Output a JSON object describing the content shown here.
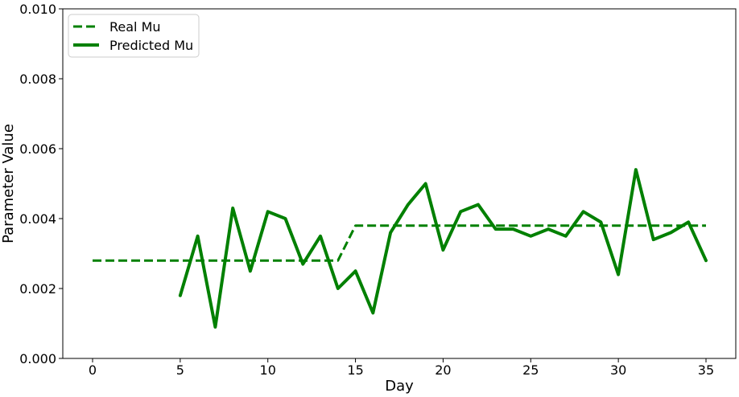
{
  "chart_data": {
    "type": "line",
    "xlabel": "Day",
    "ylabel": "Parameter Value",
    "xlim": [
      -1.7,
      36.7
    ],
    "ylim": [
      0,
      0.01
    ],
    "xticks": [
      0,
      5,
      10,
      15,
      20,
      25,
      30,
      35
    ],
    "xtick_labels": [
      "0",
      "5",
      "10",
      "15",
      "20",
      "25",
      "30",
      "35"
    ],
    "yticks": [
      0,
      0.002,
      0.004,
      0.006,
      0.008,
      0.01
    ],
    "ytick_labels": [
      "0.000",
      "0.002",
      "0.004",
      "0.006",
      "0.008",
      "0.010"
    ],
    "grid": false,
    "legend_position": "top-left",
    "series": [
      {
        "name": "Real Mu",
        "color": "#008000",
        "style": "dashed",
        "x": [
          0,
          1,
          2,
          3,
          4,
          5,
          6,
          7,
          8,
          9,
          10,
          11,
          12,
          13,
          14,
          15,
          16,
          17,
          18,
          19,
          20,
          21,
          22,
          23,
          24,
          25,
          26,
          27,
          28,
          29,
          30,
          31,
          32,
          33,
          34,
          35
        ],
        "values": [
          0.0028,
          0.0028,
          0.0028,
          0.0028,
          0.0028,
          0.0028,
          0.0028,
          0.0028,
          0.0028,
          0.0028,
          0.0028,
          0.0028,
          0.0028,
          0.0028,
          0.0028,
          0.0038,
          0.0038,
          0.0038,
          0.0038,
          0.0038,
          0.0038,
          0.0038,
          0.0038,
          0.0038,
          0.0038,
          0.0038,
          0.0038,
          0.0038,
          0.0038,
          0.0038,
          0.0038,
          0.0038,
          0.0038,
          0.0038,
          0.0038,
          0.0038
        ]
      },
      {
        "name": "Predicted Mu",
        "color": "#008000",
        "style": "solid",
        "x": [
          5,
          6,
          7,
          8,
          9,
          10,
          11,
          12,
          13,
          14,
          15,
          16,
          17,
          18,
          19,
          20,
          21,
          22,
          23,
          24,
          25,
          26,
          27,
          28,
          29,
          30,
          31,
          32,
          33,
          34,
          35
        ],
        "values": [
          0.0018,
          0.0035,
          0.0009,
          0.0043,
          0.0025,
          0.0042,
          0.004,
          0.0027,
          0.0035,
          0.002,
          0.0025,
          0.0013,
          0.0036,
          0.0044,
          0.005,
          0.0031,
          0.0042,
          0.0044,
          0.0037,
          0.0037,
          0.0035,
          0.0037,
          0.0035,
          0.0042,
          0.0039,
          0.0024,
          0.0054,
          0.0034,
          0.0036,
          0.0039,
          0.0028
        ]
      }
    ]
  }
}
